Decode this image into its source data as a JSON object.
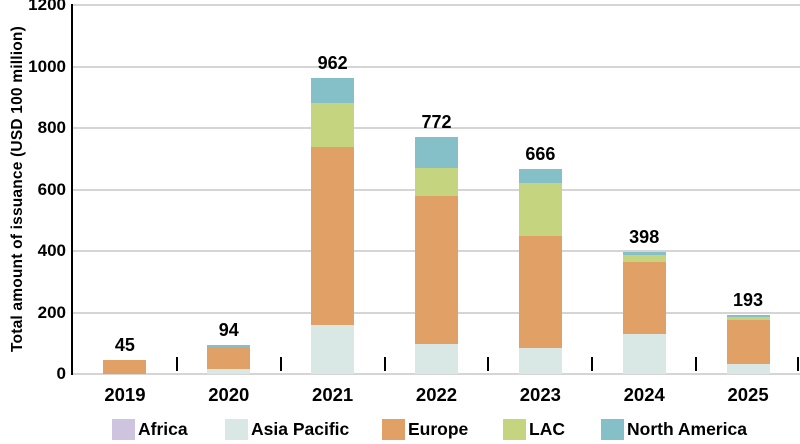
{
  "chart_data": {
    "type": "bar",
    "stacked": true,
    "title": "",
    "xlabel": "",
    "ylabel": "Total amount of issuance (USD 100 million)",
    "ylim": [
      0,
      1200
    ],
    "yticks": [
      0,
      200,
      400,
      600,
      800,
      1000,
      1200
    ],
    "grid": true,
    "legend_position": "bottom",
    "categories": [
      "2019",
      "2020",
      "2021",
      "2022",
      "2023",
      "2024",
      "2025"
    ],
    "totals": [
      45,
      94,
      962,
      772,
      666,
      398,
      193
    ],
    "series": [
      {
        "name": "Africa",
        "color": "#cfc4df",
        "values": [
          0,
          0,
          0,
          0,
          0,
          0,
          0
        ]
      },
      {
        "name": "Asia Pacific",
        "color": "#d9e8e4",
        "values": [
          0,
          15,
          159,
          98,
          86,
          129,
          33
        ]
      },
      {
        "name": "Europe",
        "color": "#e0a066",
        "values": [
          45,
          72,
          579,
          481,
          364,
          236,
          142
        ]
      },
      {
        "name": "LAC",
        "color": "#c5d47e",
        "values": [
          0,
          0,
          143,
          92,
          170,
          22,
          10
        ]
      },
      {
        "name": "North America",
        "color": "#85bfc8",
        "values": [
          0,
          7,
          81,
          101,
          46,
          11,
          8
        ]
      }
    ]
  },
  "colors": {
    "gridline": "#d5d5d5",
    "axis_line": "#000000",
    "text": "#000000",
    "background": "#ffffff"
  }
}
